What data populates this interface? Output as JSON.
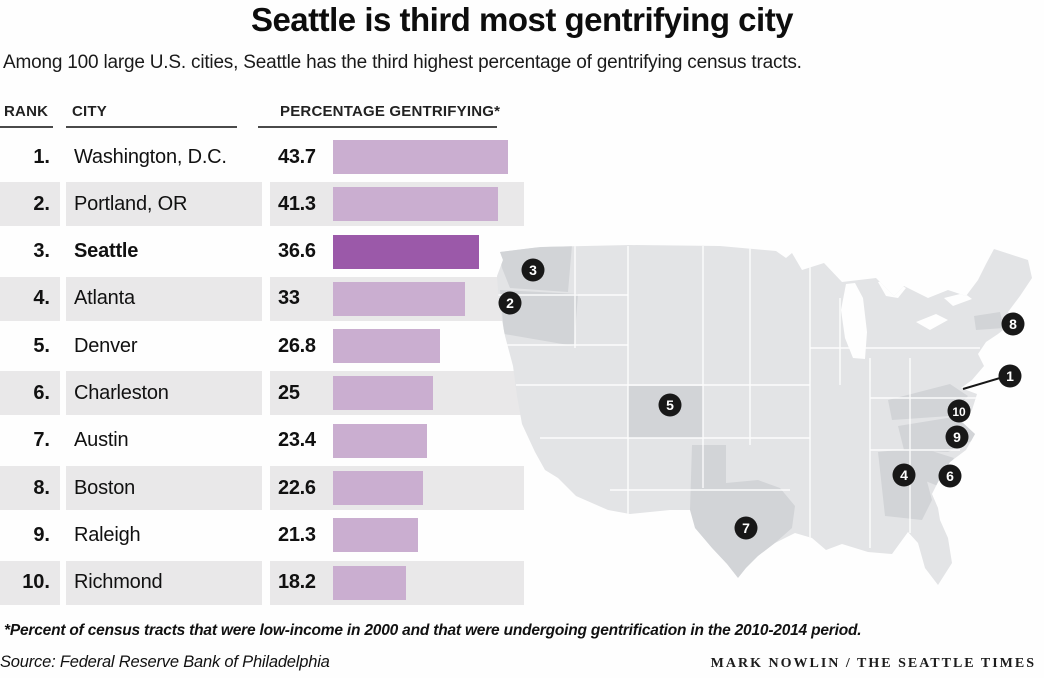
{
  "title": "Seattle is third most gentrifying city",
  "subtitle": "Among 100 large U.S. cities, Seattle has the third highest percentage of gentrifying census tracts.",
  "table": {
    "headers": {
      "rank": "RANK",
      "city": "CITY",
      "value": "PERCENTAGE GENTRIFYING*"
    },
    "rows": [
      {
        "rank": "1.",
        "city": "Washington, D.C.",
        "value": "43.7"
      },
      {
        "rank": "2.",
        "city": "Portland, OR",
        "value": "41.3"
      },
      {
        "rank": "3.",
        "city": "Seattle",
        "value": "36.6"
      },
      {
        "rank": "4.",
        "city": "Atlanta",
        "value": "33"
      },
      {
        "rank": "5.",
        "city": "Denver",
        "value": "26.8"
      },
      {
        "rank": "6.",
        "city": "Charleston",
        "value": "25"
      },
      {
        "rank": "7.",
        "city": "Austin",
        "value": "23.4"
      },
      {
        "rank": "8.",
        "city": "Boston",
        "value": "22.6"
      },
      {
        "rank": "9.",
        "city": "Raleigh",
        "value": "21.3"
      },
      {
        "rank": "10.",
        "city": "Richmond",
        "value": "18.2"
      }
    ]
  },
  "chart_data": {
    "type": "bar",
    "orientation": "horizontal",
    "title": "Seattle is third most gentrifying city",
    "categories": [
      "Washington, D.C.",
      "Portland, OR",
      "Seattle",
      "Atlanta",
      "Denver",
      "Charleston",
      "Austin",
      "Boston",
      "Raleigh",
      "Richmond"
    ],
    "values": [
      43.7,
      41.3,
      36.6,
      33,
      26.8,
      25,
      23.4,
      22.6,
      21.3,
      18.2
    ],
    "ranks": [
      1,
      2,
      3,
      4,
      5,
      6,
      7,
      8,
      9,
      10
    ],
    "xlabel": "PERCENTAGE GENTRIFYING*",
    "ylabel": "CITY",
    "xlim": [
      0,
      45
    ],
    "grid": false,
    "legend": "none",
    "highlighted_category": "Seattle",
    "bar_color": "#caaed0",
    "highlight_color": "#9b59a9"
  },
  "map": {
    "description": "U.S. map with numbered markers at each ranked city; home states shaded darker",
    "highlighted_states": [
      "Washington",
      "Oregon",
      "Colorado",
      "Texas",
      "Georgia",
      "South Carolina",
      "North Carolina",
      "Virginia",
      "Massachusetts"
    ],
    "markers": [
      {
        "label": "1",
        "city": "Washington, D.C."
      },
      {
        "label": "2",
        "city": "Portland, OR"
      },
      {
        "label": "3",
        "city": "Seattle"
      },
      {
        "label": "4",
        "city": "Atlanta"
      },
      {
        "label": "5",
        "city": "Denver"
      },
      {
        "label": "6",
        "city": "Charleston"
      },
      {
        "label": "7",
        "city": "Austin"
      },
      {
        "label": "8",
        "city": "Boston"
      },
      {
        "label": "9",
        "city": "Raleigh"
      },
      {
        "label": "10",
        "city": "Richmond"
      }
    ]
  },
  "footnote": "*Percent of census tracts that were low-income in 2000 and that were undergoing gentrification in the 2010-2014 period.",
  "source": "Source: Federal Reserve Bank of Philadelphia",
  "credit": "MARK NOWLIN / THE SEATTLE TIMES",
  "colors": {
    "bar": "#caaed0",
    "bar_highlight": "#9b59a9",
    "row_stripe": "#e9e8e9",
    "map_base": "#e3e4e6",
    "map_state": "#d2d4d7",
    "marker": "#181818"
  }
}
